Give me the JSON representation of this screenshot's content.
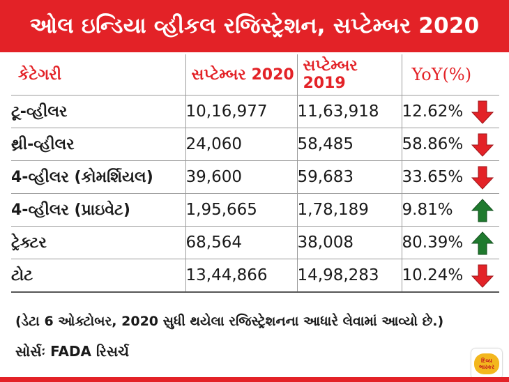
{
  "title": "ઓલ ઇન્ડિયા વ્હીકલ રજિસ્ટ્રેશન, સપ્ટેમ્બર 2020",
  "headers": {
    "category": "કેટેગરી",
    "sep2020": "સપ્ટેમ્બર 2020",
    "sep2019": "સપ્ટેમ્બર 2019",
    "yoy": "YoY(%)"
  },
  "rows": [
    {
      "category": "ટૂ-વ્હીલર",
      "sep2020": "10,16,977",
      "sep2019": "11,63,918",
      "yoy": "12.62%",
      "trend": "down"
    },
    {
      "category": "થ્રી-વ્હીલર",
      "sep2020": "24,060",
      "sep2019": "58,485",
      "yoy": "58.86%",
      "trend": "down"
    },
    {
      "category": "4-વ્હીલર (કોમર્શિયલ)",
      "sep2020": "39,600",
      "sep2019": "59,683",
      "yoy": "33.65%",
      "trend": "down"
    },
    {
      "category": "4-વ્હીલર (પ્રાઇવેટ)",
      "sep2020": "1,95,665",
      "sep2019": "1,78,189",
      "yoy": "9.81%",
      "trend": "up"
    },
    {
      "category": "ટ્રેક્ટર",
      "sep2020": "68,564",
      "sep2019": "38,008",
      "yoy": "80.39%",
      "trend": "up"
    },
    {
      "category": "ટોટ",
      "sep2020": "13,44,866",
      "sep2019": "14,98,283",
      "yoy": "10.24%",
      "trend": "down"
    }
  ],
  "note": "(ડેટા 6 ઓક્ટોબર, 2020 સુધી થયેલા રજિસ્ટ્રેશનના આધારે લેવામાં આવ્યો છે.)",
  "source": "સોર્સઃ FADA રિસર્ચ",
  "logo": {
    "line1": "દિવ્ય",
    "line2": "ભાસ્કર"
  },
  "colors": {
    "brand_red": "#e32227",
    "down_arrow": "#e32227",
    "up_arrow": "#1f7a2e",
    "border": "#9a9a9a"
  }
}
